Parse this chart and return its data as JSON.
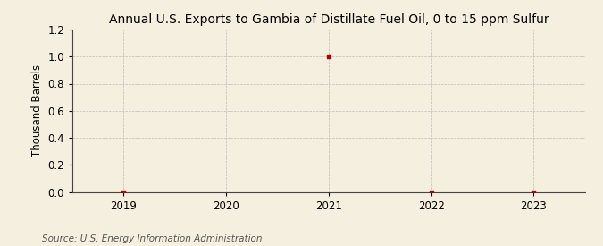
{
  "title": "Annual U.S. Exports to Gambia of Distillate Fuel Oil, 0 to 15 ppm Sulfur",
  "ylabel": "Thousand Barrels",
  "source": "Source: U.S. Energy Information Administration",
  "x_data": [
    2019,
    2021,
    2022,
    2023
  ],
  "y_data": [
    0.0,
    1.0,
    0.0,
    0.0
  ],
  "xlim": [
    2018.5,
    2023.5
  ],
  "ylim": [
    0.0,
    1.2
  ],
  "yticks": [
    0.0,
    0.2,
    0.4,
    0.6,
    0.8,
    1.0,
    1.2
  ],
  "xticks": [
    2019,
    2020,
    2021,
    2022,
    2023
  ],
  "marker_color": "#aa0000",
  "marker": "s",
  "marker_size": 3,
  "background_color": "#f5efe0",
  "grid_color": "#bbbbbb",
  "title_fontsize": 10,
  "label_fontsize": 8.5,
  "tick_fontsize": 8.5,
  "source_fontsize": 7.5
}
